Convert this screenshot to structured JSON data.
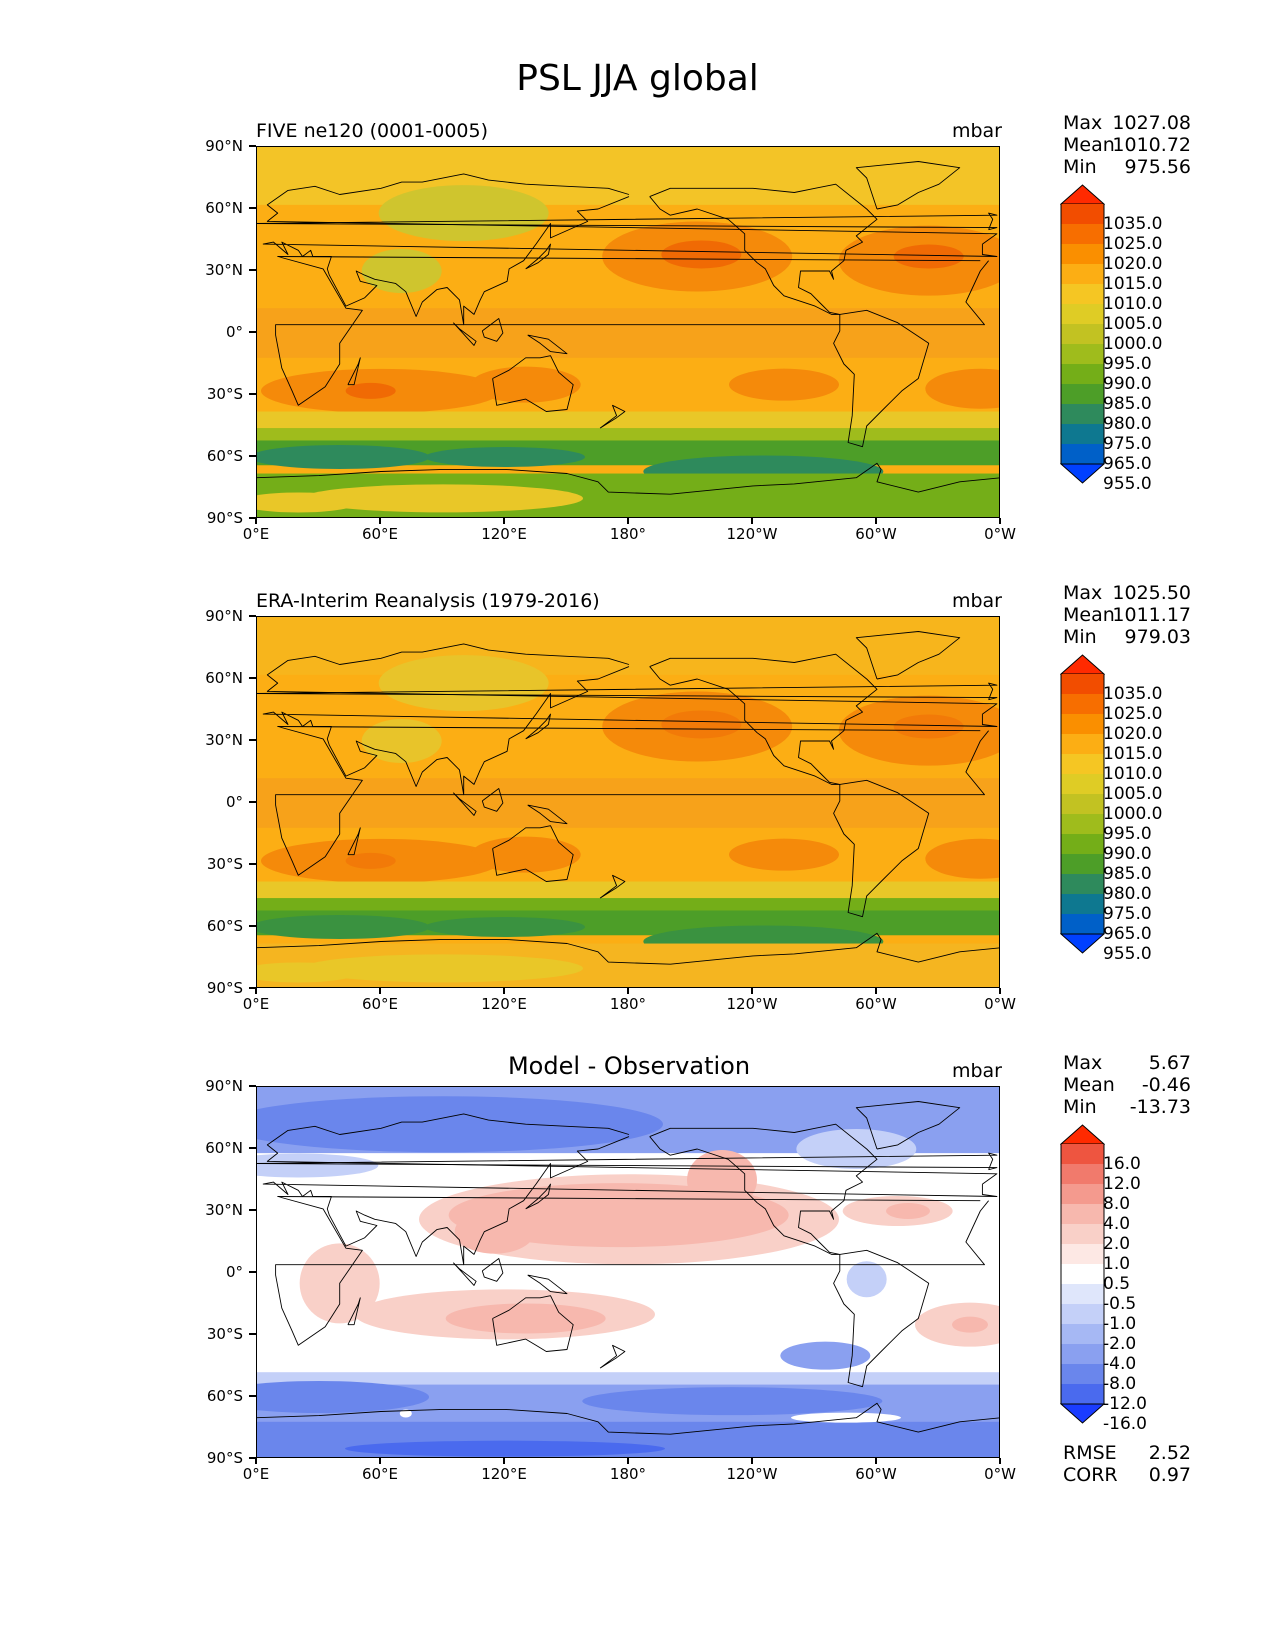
{
  "title": "PSL JJA global",
  "axes": {
    "lat_labels": [
      "90°N",
      "60°N",
      "30°N",
      "0°",
      "30°S",
      "60°S",
      "90°S"
    ],
    "lon_labels": [
      "0°E",
      "60°E",
      "120°E",
      "180°",
      "120°W",
      "60°W",
      "0°W"
    ]
  },
  "panels": [
    {
      "name": "model",
      "title": "FIVE ne120 (0001-0005)",
      "units": "mbar",
      "stats": [
        {
          "k": "Max",
          "v": "1027.08"
        },
        {
          "k": "Mean",
          "v": "1010.72"
        },
        {
          "k": "Min",
          "v": "975.56"
        }
      ],
      "colorbar": {
        "labels": [
          "1035.0",
          "1025.0",
          "1020.0",
          "1015.0",
          "1010.0",
          "1005.0",
          "1000.0",
          "995.0",
          "990.0",
          "985.0",
          "980.0",
          "975.0",
          "965.0",
          "955.0"
        ],
        "colors": [
          "#ff2a00",
          "#f24d00",
          "#f76e00",
          "#fa8f00",
          "#fcae14",
          "#f5c623",
          "#dfcc25",
          "#c2c222",
          "#9fbc1c",
          "#74ae18",
          "#4d9e28",
          "#2e8a5c",
          "#0e7890",
          "#0060c8",
          "#0040ff"
        ]
      }
    },
    {
      "name": "observation",
      "title": "ERA-Interim Reanalysis (1979-2016)",
      "units": "mbar",
      "stats": [
        {
          "k": "Max",
          "v": "1025.50"
        },
        {
          "k": "Mean",
          "v": "1011.17"
        },
        {
          "k": "Min",
          "v": "979.03"
        }
      ],
      "colorbar": {
        "labels": [
          "1035.0",
          "1025.0",
          "1020.0",
          "1015.0",
          "1010.0",
          "1005.0",
          "1000.0",
          "995.0",
          "990.0",
          "985.0",
          "980.0",
          "975.0",
          "965.0",
          "955.0"
        ],
        "colors": [
          "#ff2a00",
          "#f24d00",
          "#f76e00",
          "#fa8f00",
          "#fcae14",
          "#f5c623",
          "#dfcc25",
          "#c2c222",
          "#9fbc1c",
          "#74ae18",
          "#4d9e28",
          "#2e8a5c",
          "#0e7890",
          "#0060c8",
          "#0040ff"
        ]
      }
    },
    {
      "name": "difference",
      "title": "Model - Observation",
      "units": "mbar",
      "stats": [
        {
          "k": "Max",
          "v": "5.67"
        },
        {
          "k": "Mean",
          "v": "-0.46"
        },
        {
          "k": "Min",
          "v": "-13.73"
        }
      ],
      "colorbar": {
        "labels": [
          "16.0",
          "12.0",
          "8.0",
          "4.0",
          "2.0",
          "1.0",
          "0.5",
          "-0.5",
          "-1.0",
          "-2.0",
          "-4.0",
          "-8.0",
          "-12.0",
          "-16.0"
        ],
        "colors": [
          "#ff2a00",
          "#ee5540",
          "#f17a6c",
          "#f49a8e",
          "#f7b8ae",
          "#f9d0c8",
          "#fde8e4",
          "#ffffff",
          "#dfe6fb",
          "#c4d0f8",
          "#a6b8f4",
          "#8aa0f0",
          "#6a86ec",
          "#4a6aee",
          "#1a3cff"
        ]
      },
      "metrics": [
        {
          "k": "RMSE",
          "v": "2.52"
        },
        {
          "k": "CORR",
          "v": "0.97"
        }
      ]
    }
  ],
  "map_colors": {
    "model": {
      "bg": "#fcae14",
      "tropics": "#f7a21a",
      "subtrop_high": "#f58a0a",
      "high_core": "#f06a04",
      "arctic": "#f3c427",
      "asia_low": "#cfc52e",
      "so_band1": "#e9c728",
      "so_band2": "#9fbc1c",
      "so_band3": "#4d9e28",
      "so_band4": "#2e8a5c",
      "antarctic": "#74ae18",
      "land_line": "#000000"
    },
    "observation": {
      "bg": "#fcae14",
      "tropics": "#f7a21a",
      "subtrop_high": "#f58a0a",
      "high_core": "#f27a08",
      "arctic": "#f7b51c",
      "asia_low": "#e8c42a",
      "so_band1": "#e9c728",
      "so_band2": "#74ae18",
      "so_band3": "#4d9e28",
      "so_band4": "#3a9240",
      "antarctic": "#f5b520",
      "land_line": "#000000"
    },
    "difference": {
      "bg": "#ffffff",
      "pos1": "#f9d0c8",
      "pos2": "#f7b8ae",
      "pos3": "#f49a8e",
      "neg1": "#c4d0f8",
      "neg2": "#8aa0f0",
      "neg3": "#6a86ec",
      "neg4": "#4a6aee",
      "land_line": "#000000"
    }
  }
}
